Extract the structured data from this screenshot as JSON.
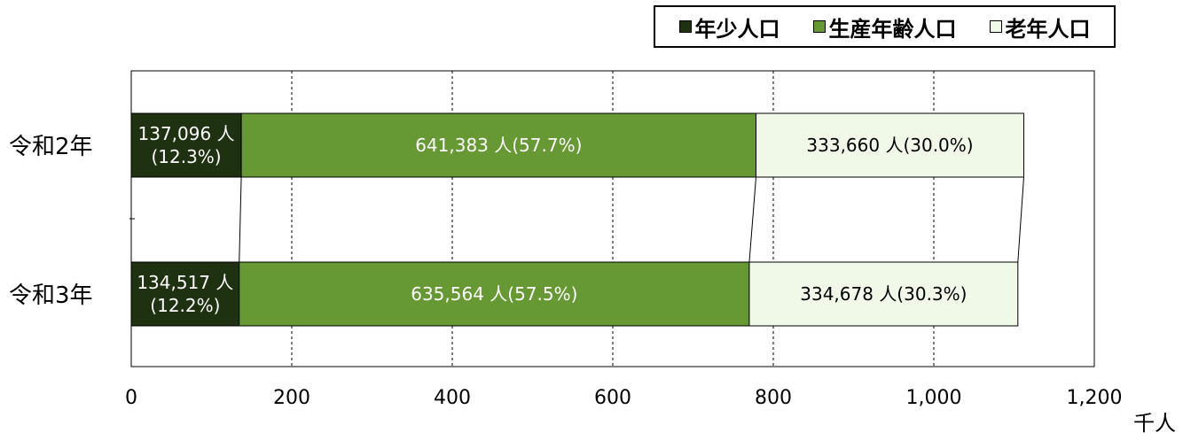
{
  "chart_data": {
    "type": "bar",
    "orientation": "horizontal",
    "stacked": true,
    "categories": [
      "令和2年",
      "令和3年"
    ],
    "series": [
      {
        "name": "年少人口",
        "values": [
          137.096,
          134.517
        ],
        "labels": [
          "137,096 人",
          "134,517 人"
        ],
        "pct_labels": [
          "(12.3%)",
          "(12.2%)"
        ],
        "color": "#1e3111"
      },
      {
        "name": "生産年齢人口",
        "values": [
          641.383,
          635.564
        ],
        "labels": [
          "641,383 人(57.7%)",
          "635,564 人(57.5%)"
        ],
        "color": "#669933"
      },
      {
        "name": "老年人口",
        "values": [
          333.66,
          334.678
        ],
        "labels": [
          "333,660 人(30.0%)",
          "334,678 人(30.3%)"
        ],
        "color": "#f0f8e8"
      }
    ],
    "xlim": [
      0,
      1200
    ],
    "xticks": [
      0,
      200,
      400,
      600,
      800,
      1000,
      1200
    ],
    "xtick_labels": [
      "0",
      "200",
      "400",
      "600",
      "800",
      "1,000",
      "1,200"
    ],
    "xunit": "千人",
    "grid": true,
    "legend_position": "top-right",
    "series_lines": true
  }
}
